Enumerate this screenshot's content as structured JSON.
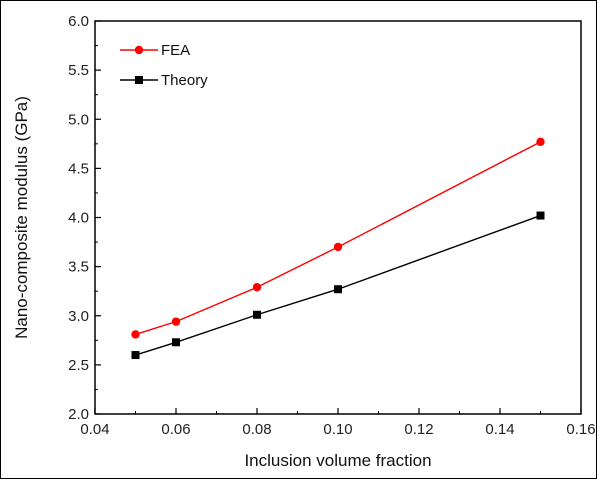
{
  "chart_data": {
    "type": "line",
    "xlabel": "Inclusion volume fraction",
    "ylabel": "Nano-composite modulus (GPa)",
    "xlim": [
      0.04,
      0.16
    ],
    "ylim": [
      2.0,
      6.0
    ],
    "x_ticks": [
      "0.04",
      "0.06",
      "0.08",
      "0.10",
      "0.12",
      "0.14",
      "0.16"
    ],
    "y_ticks": [
      "2.0",
      "2.5",
      "3.0",
      "3.5",
      "4.0",
      "4.5",
      "5.0",
      "5.5",
      "6.0"
    ],
    "x": [
      0.05,
      0.06,
      0.08,
      0.1,
      0.15
    ],
    "series": [
      {
        "name": "FEA",
        "color": "#ff0000",
        "marker": "circle",
        "values": [
          2.81,
          2.94,
          3.29,
          3.7,
          4.77
        ]
      },
      {
        "name": "Theory",
        "color": "#000000",
        "marker": "square",
        "values": [
          2.6,
          2.73,
          3.01,
          3.27,
          4.02
        ]
      }
    ],
    "legend_position": "top-left",
    "grid": false
  }
}
